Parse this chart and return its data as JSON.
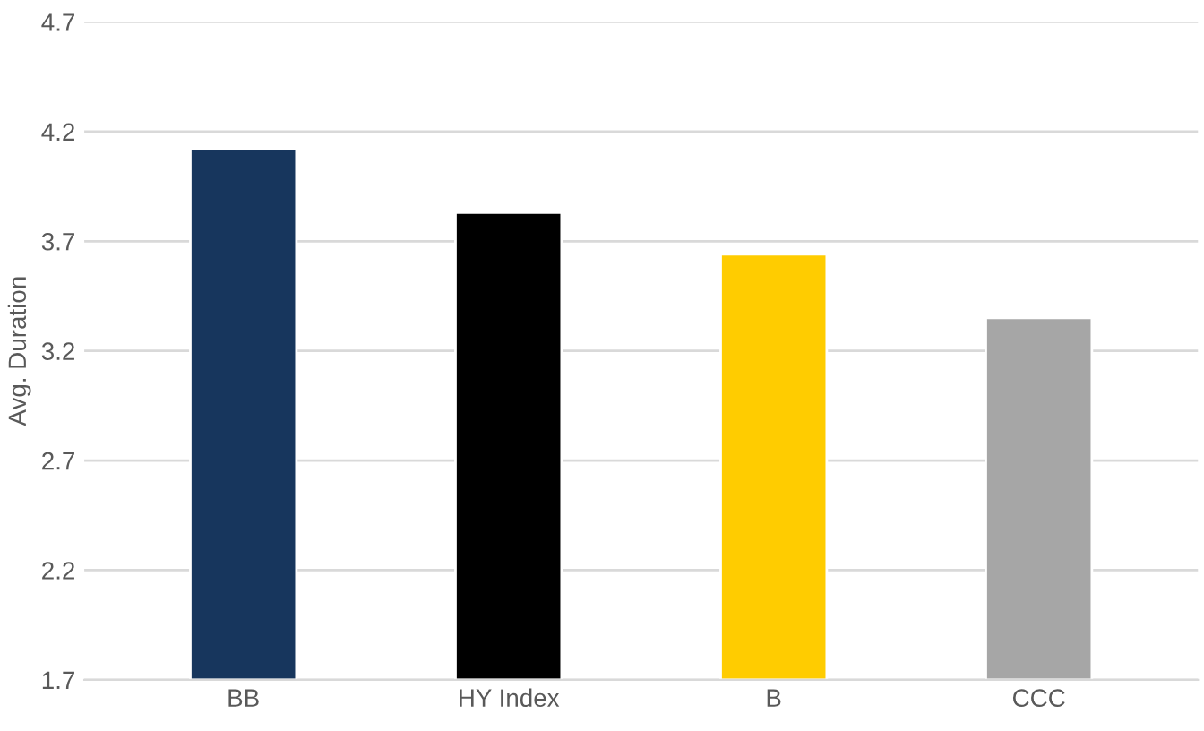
{
  "chart_data": {
    "type": "bar",
    "ylabel": "Avg. Duration",
    "categories": [
      "BB",
      "HY Index",
      "B",
      "CCC"
    ],
    "values": [
      4.12,
      3.83,
      3.64,
      3.35
    ],
    "colors": [
      "#17365d",
      "#000000",
      "#ffcc00",
      "#a6a6a6"
    ],
    "ylim": [
      1.7,
      4.7
    ],
    "yticks": [
      {
        "value": 1.7,
        "label": "1.7"
      },
      {
        "value": 2.2,
        "label": "2.2"
      },
      {
        "value": 2.7,
        "label": "2.7"
      },
      {
        "value": 3.2,
        "label": "3.2"
      },
      {
        "value": 3.7,
        "label": "3.7"
      },
      {
        "value": 4.2,
        "label": "4.2"
      },
      {
        "value": 4.7,
        "label": "4.7"
      }
    ],
    "grid": "y",
    "legend": false
  }
}
